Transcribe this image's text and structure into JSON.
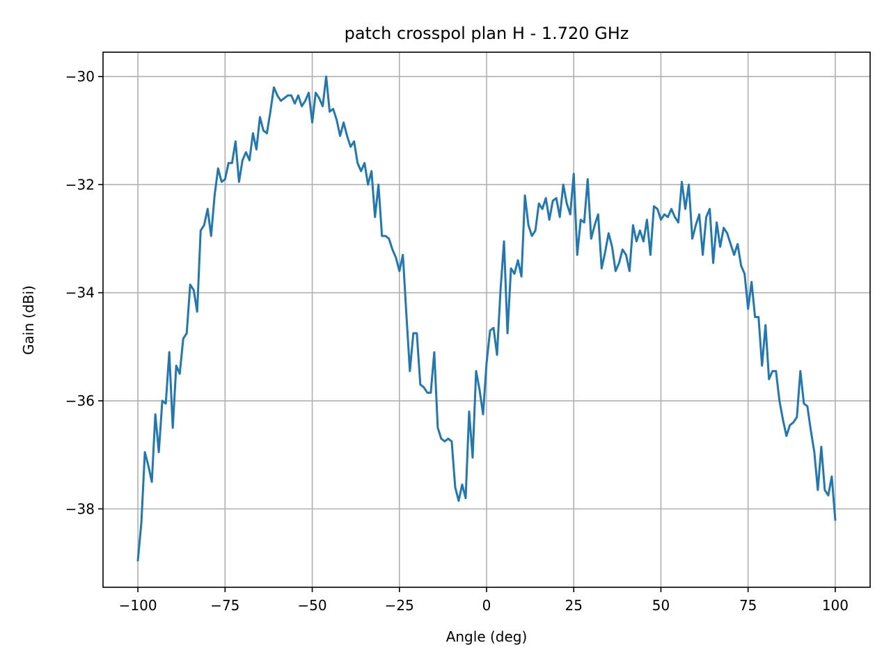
{
  "chart_data": {
    "type": "line",
    "title": "patch crosspol plan H - 1.720 GHz",
    "xlabel": "Angle (deg)",
    "ylabel": "Gain (dBi)",
    "xlim": [
      -110,
      110
    ],
    "ylim": [
      -39.45,
      -29.55
    ],
    "xticks": [
      -100,
      -75,
      -50,
      -25,
      0,
      25,
      50,
      75,
      100
    ],
    "xtick_labels": [
      "−100",
      "−75",
      "−50",
      "−25",
      "0",
      "25",
      "50",
      "75",
      "100"
    ],
    "yticks": [
      -38,
      -36,
      -34,
      -32,
      -30
    ],
    "ytick_labels": [
      "−38",
      "−36",
      "−34",
      "−32",
      "−30"
    ],
    "grid": true,
    "legend": "none",
    "series": [
      {
        "color": "#1f77b4",
        "x": [
          -100,
          -99,
          -98,
          -97,
          -96,
          -95,
          -94,
          -93,
          -92,
          -91,
          -90,
          -89,
          -88,
          -87,
          -86,
          -85,
          -84,
          -83,
          -82,
          -81,
          -80,
          -79,
          -78,
          -77,
          -76,
          -75,
          -74,
          -73,
          -72,
          -71,
          -70,
          -69,
          -68,
          -67,
          -66,
          -65,
          -64,
          -63,
          -62,
          -61,
          -60,
          -59,
          -58,
          -57,
          -56,
          -55,
          -54,
          -53,
          -52,
          -51,
          -50,
          -49,
          -48,
          -47,
          -46,
          -45,
          -44,
          -43,
          -42,
          -41,
          -40,
          -39,
          -38,
          -37,
          -36,
          -35,
          -34,
          -33,
          -32,
          -31,
          -30,
          -29,
          -28,
          -27,
          -26,
          -25,
          -24,
          -23,
          -22,
          -21,
          -20,
          -19,
          -18,
          -17,
          -16,
          -15,
          -14,
          -13,
          -12,
          -11,
          -10,
          -9,
          -8,
          -7,
          -6,
          -5,
          -4,
          -3,
          -2,
          -1,
          0,
          1,
          2,
          3,
          4,
          5,
          6,
          7,
          8,
          9,
          10,
          11,
          12,
          13,
          14,
          15,
          16,
          17,
          18,
          19,
          20,
          21,
          22,
          23,
          24,
          25,
          26,
          27,
          28,
          29,
          30,
          31,
          32,
          33,
          34,
          35,
          36,
          37,
          38,
          39,
          40,
          41,
          42,
          43,
          44,
          45,
          46,
          47,
          48,
          49,
          50,
          51,
          52,
          53,
          54,
          55,
          56,
          57,
          58,
          59,
          60,
          61,
          62,
          63,
          64,
          65,
          66,
          67,
          68,
          69,
          70,
          71,
          72,
          73,
          74,
          75,
          76,
          77,
          78,
          79,
          80,
          81,
          82,
          83,
          84,
          85,
          86,
          87,
          88,
          89,
          90,
          91,
          92,
          93,
          94,
          95,
          96,
          97,
          98,
          99,
          100
        ],
        "y": [
          -38.95,
          -38.25,
          -36.95,
          -37.2,
          -37.5,
          -36.25,
          -36.95,
          -36.0,
          -36.05,
          -35.1,
          -36.5,
          -35.35,
          -35.5,
          -34.85,
          -34.75,
          -33.85,
          -33.95,
          -34.35,
          -32.85,
          -32.75,
          -32.45,
          -32.95,
          -32.2,
          -31.7,
          -31.95,
          -31.9,
          -31.6,
          -31.6,
          -31.2,
          -31.95,
          -31.55,
          -31.4,
          -31.55,
          -31.05,
          -31.35,
          -30.75,
          -31.0,
          -31.05,
          -30.65,
          -30.2,
          -30.35,
          -30.45,
          -30.4,
          -30.35,
          -30.35,
          -30.5,
          -30.35,
          -30.55,
          -30.45,
          -30.3,
          -30.85,
          -30.3,
          -30.4,
          -30.55,
          -30.0,
          -30.65,
          -30.6,
          -30.8,
          -31.1,
          -30.85,
          -31.1,
          -31.3,
          -31.2,
          -31.6,
          -31.75,
          -31.6,
          -32.0,
          -31.75,
          -32.6,
          -32.0,
          -32.95,
          -32.95,
          -33.0,
          -33.2,
          -33.35,
          -33.6,
          -33.3,
          -34.4,
          -35.45,
          -34.75,
          -34.75,
          -35.7,
          -35.75,
          -35.85,
          -35.85,
          -35.1,
          -36.5,
          -36.7,
          -36.75,
          -36.7,
          -36.75,
          -37.6,
          -37.85,
          -37.55,
          -37.8,
          -36.2,
          -37.05,
          -35.45,
          -35.8,
          -36.25,
          -35.3,
          -34.7,
          -34.65,
          -35.15,
          -33.95,
          -33.05,
          -34.75,
          -33.55,
          -33.65,
          -33.4,
          -33.7,
          -32.2,
          -32.75,
          -32.95,
          -32.85,
          -32.35,
          -32.45,
          -32.25,
          -32.65,
          -32.3,
          -32.25,
          -32.6,
          -32.0,
          -32.35,
          -32.55,
          -31.8,
          -33.3,
          -32.65,
          -32.7,
          -31.9,
          -33.0,
          -32.75,
          -32.55,
          -33.55,
          -33.25,
          -32.9,
          -33.15,
          -33.6,
          -33.45,
          -33.2,
          -33.3,
          -33.6,
          -32.75,
          -33.05,
          -32.85,
          -33.05,
          -32.65,
          -33.3,
          -32.4,
          -32.45,
          -32.65,
          -32.55,
          -32.6,
          -32.45,
          -32.6,
          -32.7,
          -31.95,
          -32.45,
          -32.0,
          -33.0,
          -32.75,
          -32.55,
          -33.3,
          -32.6,
          -32.45,
          -33.45,
          -32.7,
          -33.15,
          -32.8,
          -32.9,
          -33.1,
          -33.3,
          -33.1,
          -33.5,
          -33.65,
          -34.3,
          -33.8,
          -34.45,
          -34.45,
          -35.35,
          -34.6,
          -35.6,
          -35.45,
          -35.45,
          -36.0,
          -36.35,
          -36.65,
          -36.45,
          -36.4,
          -36.3,
          -35.45,
          -36.05,
          -36.1,
          -36.55,
          -36.95,
          -37.65,
          -36.85,
          -37.65,
          -37.75,
          -37.4,
          -38.2
        ]
      }
    ]
  }
}
